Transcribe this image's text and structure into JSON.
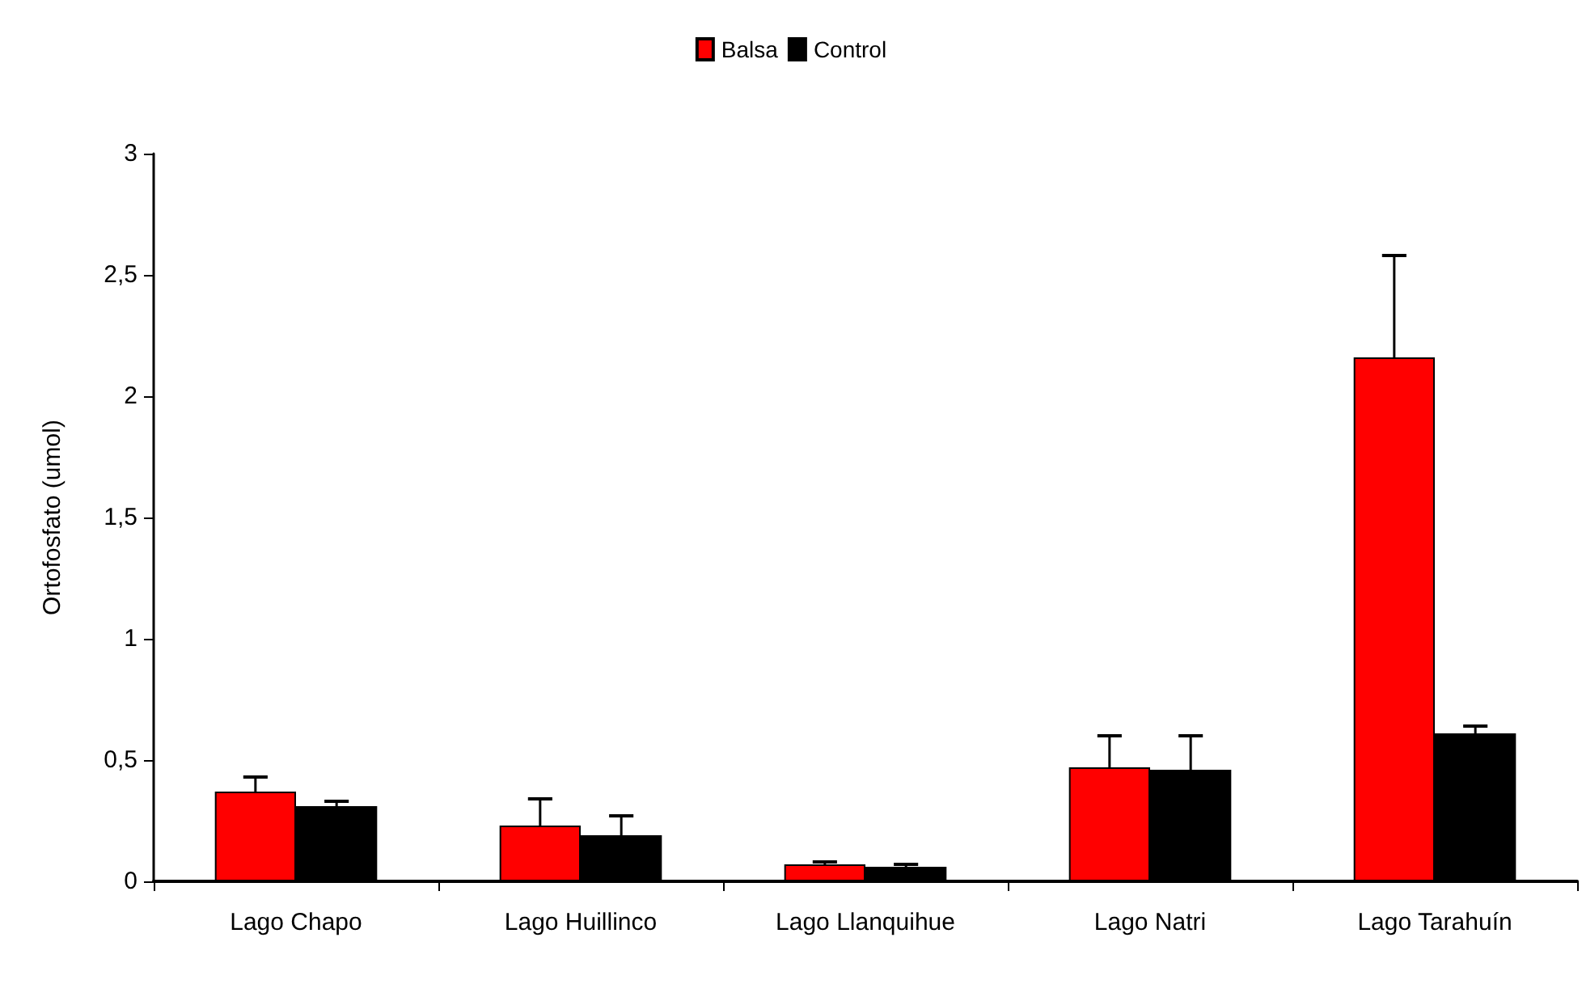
{
  "chart_data": {
    "type": "bar",
    "ylabel": "Ortofosfato (umol)",
    "categories": [
      "Lago Chapo",
      "Lago Huillinco",
      "Lago Llanquihue",
      "Lago Natri",
      "Lago Tarahuín"
    ],
    "series": [
      {
        "name": "Balsa",
        "color": "#ff0000",
        "values": [
          0.37,
          0.23,
          0.07,
          0.47,
          2.16
        ],
        "errors": [
          [
            0.37,
            0.43
          ],
          [
            0.23,
            0.34
          ],
          [
            0.07,
            0.08
          ],
          [
            0.47,
            0.6
          ],
          [
            2.16,
            2.58
          ]
        ]
      },
      {
        "name": "Control",
        "color": "#000000",
        "values": [
          0.31,
          0.19,
          0.06,
          0.46,
          0.61
        ],
        "errors": [
          [
            0.31,
            0.33
          ],
          [
            0.19,
            0.27
          ],
          [
            0.06,
            0.07
          ],
          [
            0.46,
            0.6
          ],
          [
            0.61,
            0.64
          ]
        ]
      }
    ],
    "ylim": [
      0,
      3
    ],
    "yticks": [
      0,
      {
        "value": 0.5,
        "label": "0,5"
      },
      1,
      {
        "value": 1.5,
        "label": "1,5"
      },
      2,
      {
        "value": 2.5,
        "label": "2,5"
      },
      3
    ],
    "grid": false,
    "legend": "top"
  }
}
